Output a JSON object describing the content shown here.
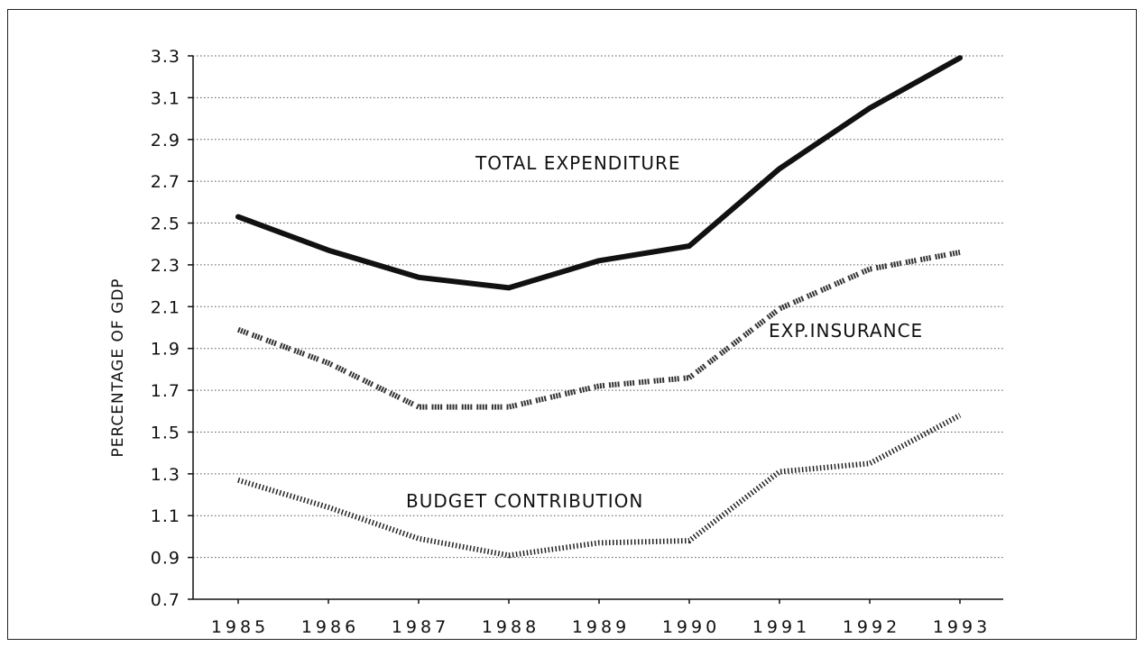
{
  "chart_data": {
    "type": "line",
    "title": "",
    "xlabel": "",
    "ylabel": "PERCENTAGE OF GDP",
    "categories": [
      "1985",
      "1986",
      "1987",
      "1988",
      "1989",
      "1990",
      "1991",
      "1992",
      "1993"
    ],
    "yticks": [
      "0.7",
      "0.9",
      "1.1",
      "1.3",
      "1.5",
      "1.7",
      "1.9",
      "2.1",
      "2.3",
      "2.5",
      "2.7",
      "2.9",
      "3.1",
      "3.3"
    ],
    "ylim": [
      0.7,
      3.3
    ],
    "grid": "horizontal dotted",
    "legend": "none (inline annotations)",
    "series": [
      {
        "name": "TOTAL EXPENDITURE",
        "style": "solid",
        "color": "#111111",
        "values": [
          2.53,
          2.37,
          2.24,
          2.19,
          2.32,
          2.39,
          2.76,
          3.05,
          3.29
        ]
      },
      {
        "name": "EXP.INSURANCE",
        "style": "hatched",
        "color": "#222222",
        "values": [
          1.99,
          1.83,
          1.62,
          1.62,
          1.72,
          1.76,
          2.09,
          2.28,
          2.36
        ]
      },
      {
        "name": "BUDGET CONTRIBUTION",
        "style": "dotted",
        "color": "#222222",
        "values": [
          1.27,
          1.14,
          0.99,
          0.91,
          0.97,
          0.98,
          1.31,
          1.35,
          1.58
        ]
      }
    ]
  }
}
